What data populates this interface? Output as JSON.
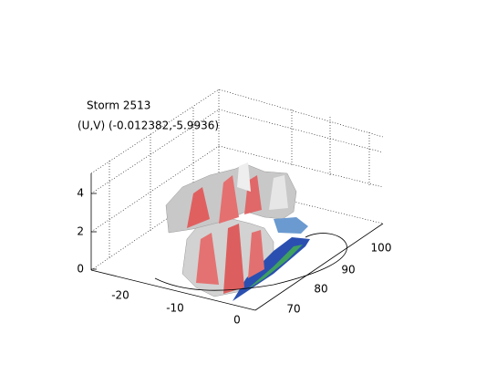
{
  "title": "Storm 2513",
  "subtitle": "(U,V) (-0.012382,-5.9936)",
  "z_ticks": [
    0,
    2,
    4
  ],
  "x_ticks": [
    -20,
    -10,
    0
  ],
  "y_ticks": [
    70,
    80,
    90,
    100
  ]
}
